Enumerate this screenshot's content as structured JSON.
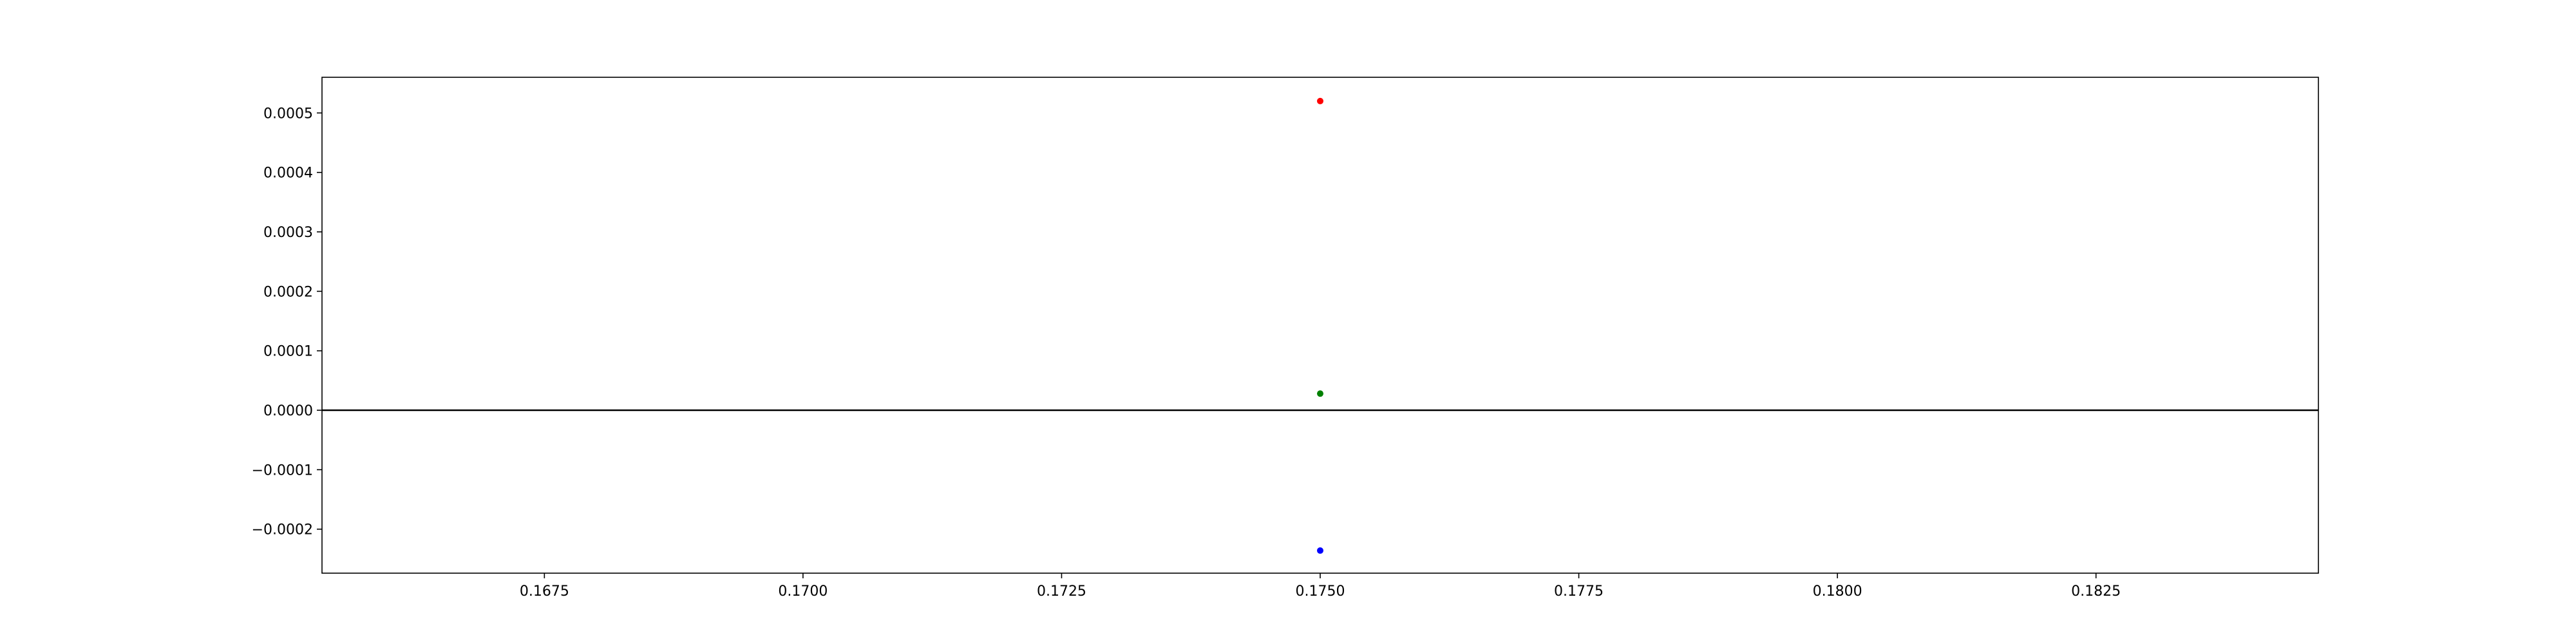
{
  "chart_data": {
    "type": "scatter",
    "title": "",
    "xlabel": "",
    "ylabel": "",
    "xlim": [
      0.16535,
      0.18465
    ],
    "ylim": [
      -0.000274,
      0.00056
    ],
    "grid": false,
    "x_ticks": [
      {
        "value": 0.1675,
        "label": "0.1675"
      },
      {
        "value": 0.17,
        "label": "0.1700"
      },
      {
        "value": 0.1725,
        "label": "0.1725"
      },
      {
        "value": 0.175,
        "label": "0.1750"
      },
      {
        "value": 0.1775,
        "label": "0.1775"
      },
      {
        "value": 0.18,
        "label": "0.1800"
      },
      {
        "value": 0.1825,
        "label": "0.1825"
      }
    ],
    "y_ticks": [
      {
        "value": 0.0005,
        "label": "0.0005"
      },
      {
        "value": 0.0004,
        "label": "0.0004"
      },
      {
        "value": 0.0003,
        "label": "0.0003"
      },
      {
        "value": 0.0002,
        "label": "0.0002"
      },
      {
        "value": 0.0001,
        "label": "0.0001"
      },
      {
        "value": 0.0,
        "label": "0.0000"
      },
      {
        "value": -0.0001,
        "label": "−0.0001"
      },
      {
        "value": -0.0002,
        "label": "−0.0002"
      }
    ],
    "reference_line": {
      "y": 0.0,
      "color": "#000000"
    },
    "series": [
      {
        "color": "#ff0000",
        "points": [
          {
            "x": 0.175,
            "y": 0.00052
          }
        ]
      },
      {
        "color": "#008000",
        "points": [
          {
            "x": 0.175,
            "y": 2.8e-05
          }
        ]
      },
      {
        "color": "#0000ff",
        "points": [
          {
            "x": 0.175,
            "y": -0.000236
          }
        ]
      }
    ]
  }
}
